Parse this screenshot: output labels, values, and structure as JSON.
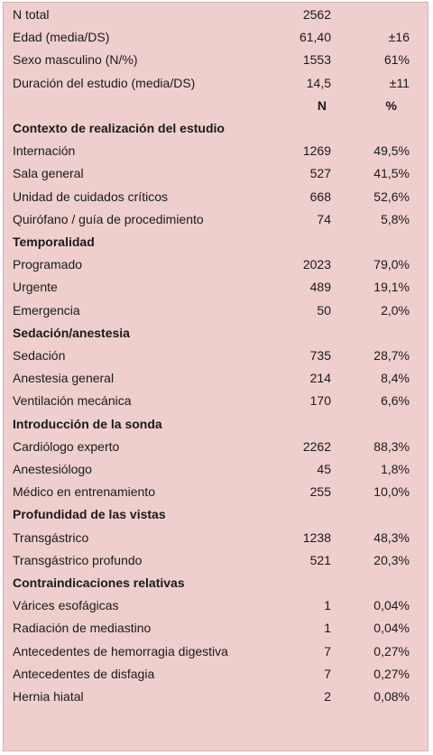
{
  "summary": [
    {
      "label": "N total",
      "n": "2562",
      "pct": ""
    },
    {
      "label": "Edad (media/DS)",
      "n": "61,40",
      "pct": "±16"
    },
    {
      "label": "Sexo masculino (N/%)",
      "n": "1553",
      "pct": "61%"
    },
    {
      "label": "Duración del estudio (media/DS)",
      "n": "14,5",
      "pct": "±11"
    }
  ],
  "column_headers": {
    "n": "N",
    "pct": "%"
  },
  "sections": [
    {
      "title": "Contexto de realización del estudio",
      "rows": [
        {
          "label": "Internación",
          "n": "1269",
          "pct": "49,5%"
        },
        {
          "label": "Sala general",
          "n": "527",
          "pct": "41,5%"
        },
        {
          "label": "Unidad de cuidados críticos",
          "n": "668",
          "pct": "52,6%"
        },
        {
          "label": "Quirófano / guía de procedimiento",
          "n": "74",
          "pct": "5,8%"
        }
      ]
    },
    {
      "title": "Temporalidad",
      "rows": [
        {
          "label": "Programado",
          "n": "2023",
          "pct": "79,0%"
        },
        {
          "label": "Urgente",
          "n": "489",
          "pct": "19,1%"
        },
        {
          "label": "Emergencia",
          "n": "50",
          "pct": "2,0%"
        }
      ]
    },
    {
      "title": "Sedación/anestesia",
      "rows": [
        {
          "label": "Sedación",
          "n": "735",
          "pct": "28,7%"
        },
        {
          "label": "Anestesia general",
          "n": "214",
          "pct": "8,4%"
        },
        {
          "label": "Ventilación mecánica",
          "n": "170",
          "pct": "6,6%"
        }
      ]
    },
    {
      "title": "Introducción de la sonda",
      "rows": [
        {
          "label": "Cardiólogo experto",
          "n": "2262",
          "pct": "88,3%"
        },
        {
          "label": "Anestesiólogo",
          "n": "45",
          "pct": "1,8%"
        },
        {
          "label": "Médico en entrenamiento",
          "n": "255",
          "pct": "10,0%"
        }
      ]
    },
    {
      "title": "Profundidad de las vistas",
      "rows": [
        {
          "label": "Transgástrico",
          "n": "1238",
          "pct": "48,3%"
        },
        {
          "label": "Transgástrico profundo",
          "n": "521",
          "pct": "20,3%"
        }
      ]
    },
    {
      "title": "Contraindicaciones relativas",
      "rows": [
        {
          "label": "Várices esofágicas",
          "n": "1",
          "pct": "0,04%"
        },
        {
          "label": "Radiación de mediastino",
          "n": "1",
          "pct": "0,04%"
        },
        {
          "label": "Antecedentes de hemorragia digestiva",
          "n": "7",
          "pct": "0,27%"
        },
        {
          "label": "Antecedentes de disfagia",
          "n": "7",
          "pct": "0,27%"
        },
        {
          "label": "Hernia hiatal",
          "n": "2",
          "pct": "0,08%"
        }
      ]
    }
  ]
}
